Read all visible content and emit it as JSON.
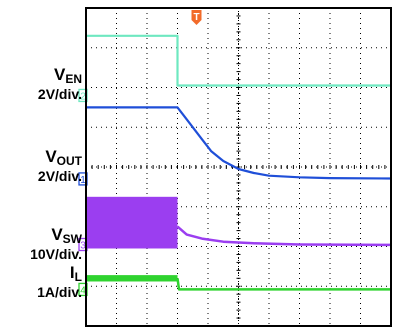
{
  "chart_data": {
    "type": "line",
    "title": "",
    "xlabel": "",
    "ylabel": "",
    "grid": true,
    "grid_divisions": {
      "x": 10,
      "y": 8
    },
    "time_axis_divisions": [
      0,
      10
    ],
    "trigger_marker": {
      "label": "T",
      "color": "#f26b2a",
      "x_div": 3.0
    },
    "traces": [
      {
        "channel": "2",
        "name": "V",
        "sub": "EN",
        "scale": "2V/div.",
        "color": "#6ee8c0",
        "points": [
          [
            0,
            7.3
          ],
          [
            3.0,
            7.3
          ],
          [
            3.0,
            6.05
          ],
          [
            10,
            6.05
          ]
        ]
      },
      {
        "channel": "1",
        "name": "V",
        "sub": "OUT",
        "scale": "2V/div.",
        "color": "#1f4fd8",
        "points": [
          [
            0,
            5.5
          ],
          [
            3.0,
            5.5
          ],
          [
            3.2,
            5.3
          ],
          [
            3.5,
            5.0
          ],
          [
            3.8,
            4.7
          ],
          [
            4.1,
            4.4
          ],
          [
            4.5,
            4.15
          ],
          [
            5.0,
            3.95
          ],
          [
            5.5,
            3.85
          ],
          [
            6.0,
            3.78
          ],
          [
            7.0,
            3.74
          ],
          [
            8.0,
            3.72
          ],
          [
            10,
            3.71
          ]
        ]
      },
      {
        "channel": "3",
        "name": "V",
        "sub": "SW",
        "scale": "10V/div.",
        "color": "#9b3ef0",
        "band": {
          "x": [
            0,
            3.0
          ],
          "y": [
            1.95,
            3.25
          ]
        },
        "points": [
          [
            3.0,
            2.5
          ],
          [
            3.3,
            2.3
          ],
          [
            3.8,
            2.2
          ],
          [
            4.5,
            2.12
          ],
          [
            5.5,
            2.08
          ],
          [
            7.0,
            2.05
          ],
          [
            10,
            2.04
          ]
        ]
      },
      {
        "channel": "4",
        "name": "I",
        "sub": "L",
        "scale": "1A/div.",
        "color": "#2fd32f",
        "band": {
          "x": [
            0,
            3.0
          ],
          "y": [
            1.12,
            1.28
          ]
        },
        "points": [
          [
            3.0,
            1.2
          ],
          [
            3.05,
            0.92
          ],
          [
            10,
            0.92
          ]
        ]
      }
    ]
  }
}
